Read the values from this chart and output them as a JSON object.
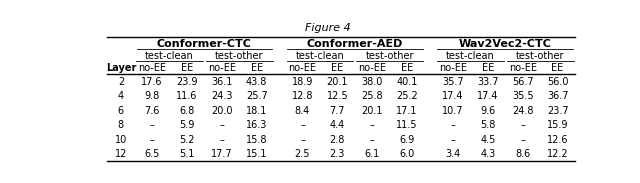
{
  "col_groups": [
    {
      "label": "Conformer-CTC",
      "subgroups": [
        {
          "label": "test-clean"
        },
        {
          "label": "test-other"
        }
      ]
    },
    {
      "label": "Conformer-AED",
      "subgroups": [
        {
          "label": "test-clean"
        },
        {
          "label": "test-other"
        }
      ]
    },
    {
      "label": "Wav2Vec2-CTC",
      "subgroups": [
        {
          "label": "test-clean"
        },
        {
          "label": "test-other"
        }
      ]
    }
  ],
  "row_header": "Layer",
  "rows": [
    {
      "layer": "2",
      "data": [
        "17.6",
        "23.9",
        "36.1",
        "43.8",
        "18.9",
        "20.1",
        "38.0",
        "40.1",
        "35.7",
        "33.7",
        "56.7",
        "56.0"
      ]
    },
    {
      "layer": "4",
      "data": [
        "9.8",
        "11.6",
        "24.3",
        "25.7",
        "12.8",
        "12.5",
        "25.8",
        "25.2",
        "17.4",
        "17.4",
        "35.5",
        "36.7"
      ]
    },
    {
      "layer": "6",
      "data": [
        "7.6",
        "6.8",
        "20.0",
        "18.1",
        "8.4",
        "7.7",
        "20.1",
        "17.1",
        "10.7",
        "9.6",
        "24.8",
        "23.7"
      ]
    },
    {
      "layer": "8",
      "data": [
        "–",
        "5.9",
        "–",
        "16.3",
        "–",
        "4.4",
        "–",
        "11.5",
        "–",
        "5.8",
        "–",
        "15.9"
      ]
    },
    {
      "layer": "10",
      "data": [
        "–",
        "5.2",
        "–",
        "15.8",
        "–",
        "2.8",
        "–",
        "6.9",
        "–",
        "4.5",
        "–",
        "12.6"
      ]
    },
    {
      "layer": "12",
      "data": [
        "6.5",
        "5.1",
        "17.7",
        "15.1",
        "2.5",
        "2.3",
        "6.1",
        "6.0",
        "3.4",
        "4.3",
        "8.6",
        "12.2"
      ]
    }
  ],
  "font_size": 7.0,
  "header_font_size": 8.0,
  "fig_title": "Figure 4",
  "fig_title_fontsize": 8.0,
  "line_color": "black",
  "thick_lw": 1.0,
  "thin_lw": 0.6
}
